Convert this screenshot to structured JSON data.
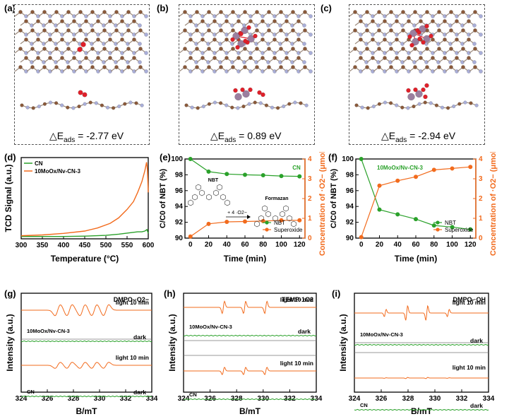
{
  "structures": [
    {
      "label": "(a)",
      "eads_value": "-2.77 eV"
    },
    {
      "label": "(b)",
      "eads_value": "0.89 eV"
    },
    {
      "label": "(c)",
      "eads_value": "-2.94 eV"
    }
  ],
  "eads_symbol": "△E",
  "eads_sub": "ads",
  "eads_eq": " = ",
  "colors": {
    "orange": "#f26b1d",
    "green": "#2aa12a",
    "carbon": "#8a5a3b",
    "nitrogen": "#a9aed8",
    "oxygen": "#e0202a",
    "mo": "#9b7f9f"
  },
  "chart_data": [
    {
      "panel": "(d)",
      "type": "line",
      "xlabel": "Temperature (°C)",
      "ylabel": "TCD Signal (a.u.)",
      "xlim": [
        300,
        600
      ],
      "xticks": [
        300,
        350,
        400,
        450,
        500,
        550,
        600
      ],
      "legend": [
        "CN",
        "10MoOx/Nv-CN-3"
      ],
      "series": [
        {
          "name": "CN",
          "color": "green",
          "x": [
            300,
            350,
            400,
            450,
            500,
            530,
            560,
            575,
            585,
            592,
            597,
            600
          ],
          "y": [
            0.03,
            0.03,
            0.03,
            0.035,
            0.045,
            0.06,
            0.08,
            0.09,
            0.09,
            0.1,
            0.12,
            0.07
          ]
        },
        {
          "name": "10MoOx/Nv-CN-3",
          "color": "orange",
          "x": [
            300,
            350,
            400,
            450,
            480,
            510,
            530,
            550,
            565,
            575,
            585,
            592,
            596,
            598,
            600
          ],
          "y": [
            0.04,
            0.05,
            0.07,
            0.1,
            0.14,
            0.2,
            0.27,
            0.38,
            0.48,
            0.6,
            0.74,
            0.88,
            0.99,
            0.9,
            0.6
          ]
        }
      ]
    },
    {
      "panel": "(e)",
      "type": "line",
      "title": "CN",
      "xlabel": "Time (min)",
      "ylabel": "C/C0 of NBT (%)",
      "ylabel_right": "Concentration of ·O2− (μmol/L)",
      "x": [
        0,
        20,
        40,
        60,
        80,
        100,
        120
      ],
      "xticks": [
        0,
        20,
        40,
        60,
        80,
        100,
        120
      ],
      "ylim": [
        90,
        100
      ],
      "yticks": [
        90,
        92,
        94,
        96,
        98,
        100
      ],
      "ylim_right": [
        0,
        4
      ],
      "yticks_right": [
        0,
        1,
        2,
        3,
        4
      ],
      "series": [
        {
          "name": "NBT",
          "axis": "left",
          "color": "green",
          "values": [
            100,
            98.4,
            98.1,
            98.0,
            97.95,
            97.85,
            97.8
          ]
        },
        {
          "name": "Superoxide",
          "axis": "right",
          "color": "orange",
          "values": [
            0.08,
            0.72,
            0.82,
            0.84,
            0.86,
            0.9,
            0.9
          ]
        }
      ],
      "annotations": {
        "nbt": "NBT",
        "formazan": "Formazan",
        "reaction": "+ 4 ·O2−"
      }
    },
    {
      "panel": "(f)",
      "type": "line",
      "title": "10MoOx/Nv-CN-3",
      "xlabel": "Time (min)",
      "ylabel": "C/C0 of NBT (%)",
      "ylabel_right": "Concentration of ·O2− (μmol/L)",
      "x": [
        0,
        20,
        40,
        60,
        80,
        100,
        120
      ],
      "xticks": [
        0,
        20,
        40,
        60,
        80,
        100,
        120
      ],
      "ylim": [
        90,
        100
      ],
      "yticks": [
        90,
        92,
        94,
        96,
        98,
        100
      ],
      "ylim_right": [
        0,
        4
      ],
      "yticks_right": [
        0,
        1,
        2,
        3,
        4
      ],
      "series": [
        {
          "name": "NBT",
          "axis": "left",
          "color": "green",
          "values": [
            100,
            93.6,
            93.0,
            92.4,
            91.6,
            91.4,
            91.1
          ]
        },
        {
          "name": "Superoxide",
          "axis": "right",
          "color": "orange",
          "values": [
            0.05,
            2.65,
            2.9,
            3.1,
            3.45,
            3.52,
            3.6
          ]
        }
      ]
    },
    {
      "panel": "(g)",
      "type": "line",
      "title": "DMPO-·O2−",
      "xlabel": "B/mT",
      "ylabel": "Intensity (a.u.)",
      "xlim": [
        324,
        334
      ],
      "xticks": [
        324,
        326,
        328,
        330,
        332,
        334
      ],
      "groups": [
        {
          "sample": "10MoOx/Nv-CN-3",
          "light": "light 10 min",
          "dark": "dark",
          "amp": 1.0
        },
        {
          "sample": "CN",
          "light": "light 10 min",
          "dark": "dark",
          "amp": 0.55
        }
      ],
      "lines": [
        326.8,
        327.7,
        328.7,
        329.6,
        330.5
      ]
    },
    {
      "panel": "(h)",
      "type": "line",
      "title": "TEMP-1O2",
      "xlabel": "B/mT",
      "ylabel": "Intensity (a.u.)",
      "xlim": [
        324,
        334
      ],
      "xticks": [
        324,
        326,
        328,
        330,
        332,
        334
      ],
      "groups": [
        {
          "sample": "10MoOx/Nv-CN-3",
          "light": "light 10 min",
          "dark": "dark",
          "amp": 1.0
        },
        {
          "sample": "CN",
          "light": "light 10 min",
          "dark": "",
          "amp": 0.6
        }
      ],
      "lines": [
        327.0,
        328.6,
        330.2
      ]
    },
    {
      "panel": "(i)",
      "type": "line",
      "title": "DMPO-·OH",
      "xlabel": "B/mT",
      "ylabel": "Intensity (a.u.)",
      "xlim": [
        324,
        334
      ],
      "xticks": [
        324,
        326,
        328,
        330,
        332,
        334
      ],
      "groups": [
        {
          "sample": "10MoOx/Nv-CN-3",
          "light": "light 10 min",
          "dark": "dark",
          "amp": 1.0
        },
        {
          "sample": "CN",
          "light": "light 10 min",
          "dark": "dark",
          "amp": 0.08
        }
      ],
      "lines": [
        326.3,
        327.9,
        329.4,
        331.0
      ]
    }
  ]
}
